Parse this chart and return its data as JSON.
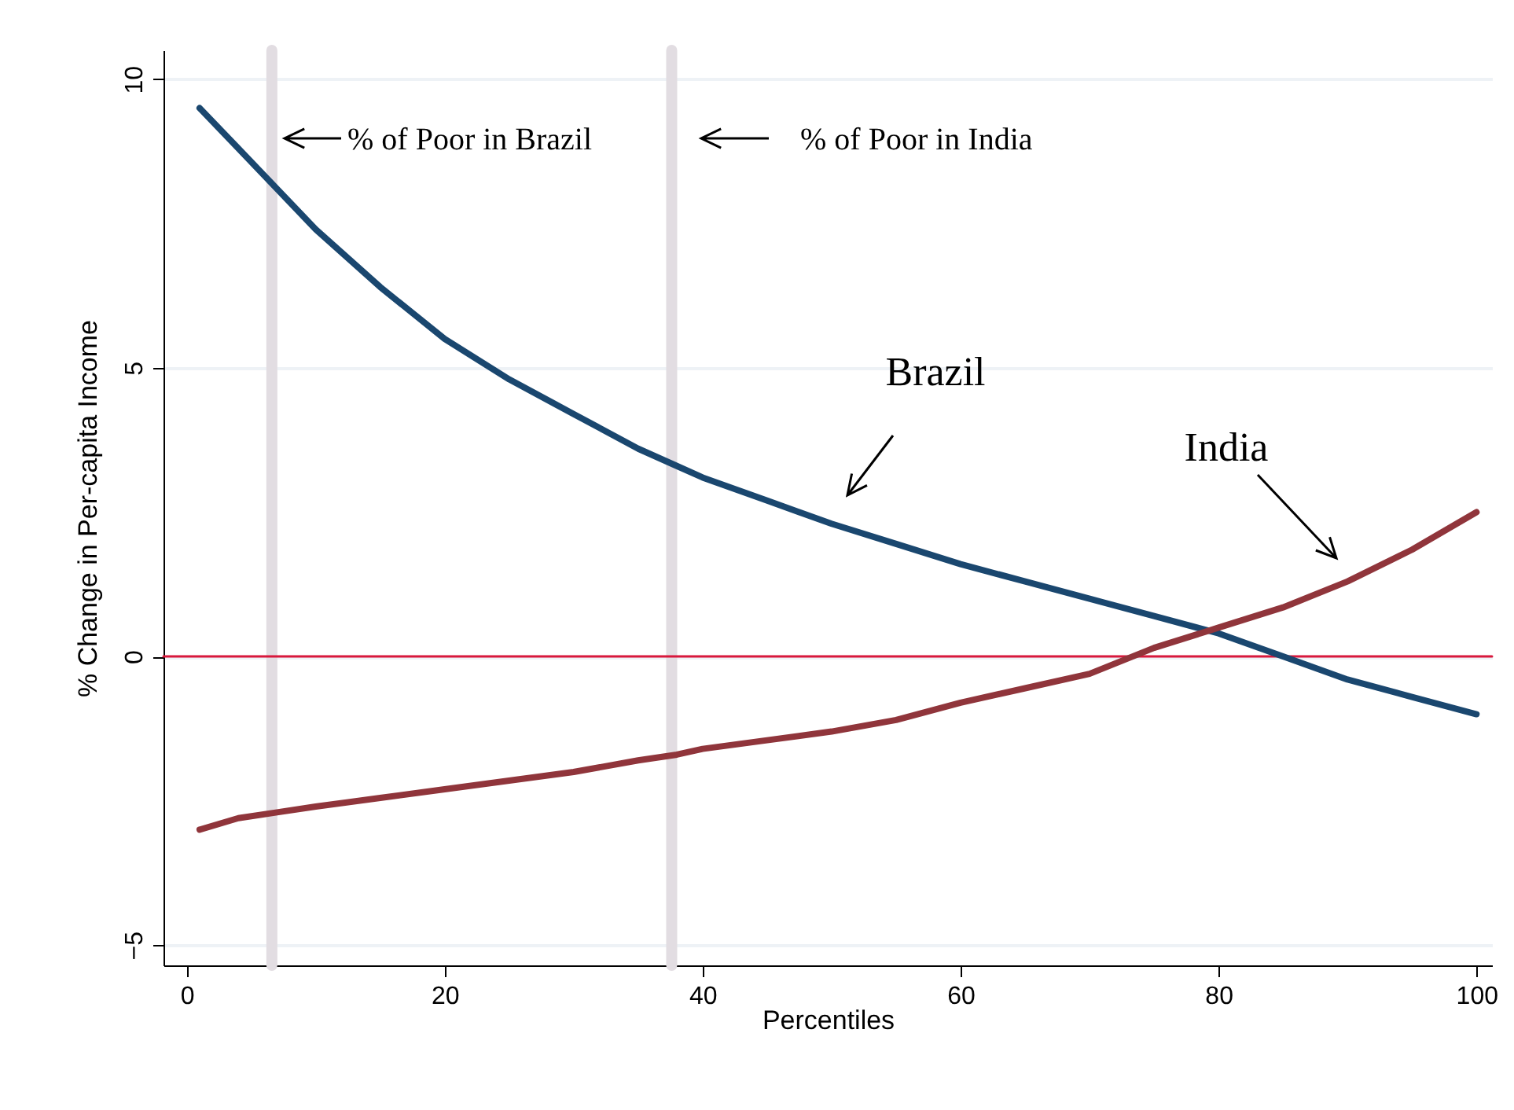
{
  "chart_data": {
    "type": "line",
    "xlabel": "Percentiles",
    "ylabel": "% Change in Per-capita Income",
    "x": [
      1,
      4,
      7,
      10,
      15,
      20,
      25,
      30,
      35,
      38,
      40,
      45,
      50,
      55,
      60,
      65,
      70,
      75,
      80,
      85,
      90,
      95,
      100
    ],
    "series": [
      {
        "color": "#1a476f",
        "values": [
          9.5,
          8.8,
          8.1,
          7.4,
          6.4,
          5.5,
          4.8,
          4.2,
          3.6,
          3.3,
          3.1,
          2.7,
          2.3,
          1.95,
          1.6,
          1.3,
          1.0,
          0.7,
          0.4,
          0.0,
          -0.4,
          -0.7,
          -1.0
        ]
      },
      {
        "color": "#90353b",
        "values": [
          -3.0,
          -2.8,
          -2.7,
          -2.6,
          -2.45,
          -2.3,
          -2.15,
          -2.0,
          -1.8,
          -1.7,
          -1.6,
          -1.45,
          -1.3,
          -1.1,
          -0.8,
          -0.55,
          -0.3,
          0.15,
          0.5,
          0.85,
          1.3,
          1.85,
          2.5
        ]
      }
    ],
    "xlim": [
      -1.8,
      101.2
    ],
    "ylim": [
      -5.35,
      10.5
    ],
    "xticks": [
      0,
      20,
      40,
      60,
      80,
      100
    ],
    "yticks": [
      -5,
      0,
      5,
      10
    ],
    "grid": "y",
    "marker": "none",
    "line_style": "solid",
    "ref_lines": [
      {
        "axis": "x",
        "value": 6.6,
        "color": "#e2dde2"
      },
      {
        "axis": "x",
        "value": 37.6,
        "color": "#e2dde2"
      },
      {
        "axis": "y",
        "value": 0,
        "color": "#d8183c"
      }
    ],
    "annotations": [
      "% of Poor in Brazil",
      "% of Poor in India",
      "Brazil",
      "India"
    ]
  }
}
